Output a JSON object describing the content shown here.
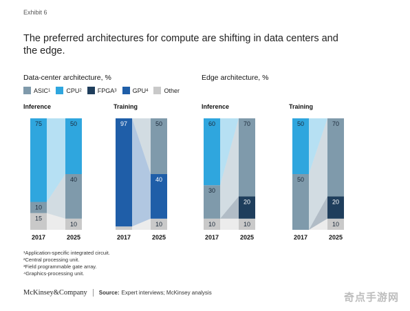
{
  "exhibit": "Exhibit 6",
  "title": "The preferred architectures for compute are shifting in data centers and the edge.",
  "colors": {
    "ASIC": "#7f9aab",
    "CPU": "#2fa6de",
    "FPGA": "#1f3e5c",
    "GPU": "#1f5ea8",
    "Other": "#c9c9c9",
    "label_light": "#1b2a3a",
    "label_dark": "#ffffff"
  },
  "legend": [
    {
      "key": "ASIC",
      "label": "ASIC",
      "sup": "1"
    },
    {
      "key": "CPU",
      "label": "CPU",
      "sup": "2"
    },
    {
      "key": "FPGA",
      "label": "FPGA",
      "sup": "3"
    },
    {
      "key": "GPU",
      "label": "GPU",
      "sup": "4"
    },
    {
      "key": "Other",
      "label": "Other",
      "sup": ""
    }
  ],
  "sections": {
    "datacenter": "Data-center architecture,  %",
    "edge": "Edge architecture,  %"
  },
  "footnotes": [
    "¹Application-specific integrated circuit.",
    "²Central processing unit.",
    "³Field programmable gate array.",
    "⁴Graphics-processing unit."
  ],
  "footer": {
    "logo": "McKinsey&Company",
    "source_label": "Source:",
    "source_text": "Expert interviews; McKinsey analysis"
  },
  "watermark": "奇点手游网",
  "chart_data": [
    {
      "type": "bar",
      "stacked": true,
      "title": "Inference",
      "group": "Data-center architecture,  %",
      "categories": [
        "2017",
        "2025"
      ],
      "series": [
        {
          "name": "Other",
          "values": [
            15,
            10
          ],
          "labels": [
            "15",
            "10"
          ]
        },
        {
          "name": "ASIC",
          "values": [
            10,
            40
          ],
          "labels": [
            "10",
            "40"
          ]
        },
        {
          "name": "CPU",
          "values": [
            75,
            50
          ],
          "labels": [
            "75",
            "50"
          ]
        }
      ]
    },
    {
      "type": "bar",
      "stacked": true,
      "title": "Training",
      "group": "Data-center architecture,  %",
      "categories": [
        "2017",
        "2025"
      ],
      "series": [
        {
          "name": "Other",
          "values": [
            3,
            10
          ],
          "labels": [
            "",
            "10"
          ]
        },
        {
          "name": "GPU",
          "values": [
            97,
            40
          ],
          "labels": [
            "97",
            "40"
          ]
        },
        {
          "name": "ASIC",
          "values": [
            0,
            50
          ],
          "labels": [
            "",
            "50"
          ]
        }
      ]
    },
    {
      "type": "bar",
      "stacked": true,
      "title": "Inference",
      "group": "Edge architecture,  %",
      "categories": [
        "2017",
        "2025"
      ],
      "series": [
        {
          "name": "Other",
          "values": [
            10,
            10
          ],
          "labels": [
            "10",
            "10"
          ]
        },
        {
          "name": "FPGA",
          "values": [
            0,
            20
          ],
          "labels": [
            "",
            "20"
          ]
        },
        {
          "name": "ASIC",
          "values": [
            30,
            70
          ],
          "labels": [
            "30",
            "70"
          ]
        },
        {
          "name": "CPU",
          "values": [
            60,
            0
          ],
          "labels": [
            "60",
            ""
          ]
        }
      ]
    },
    {
      "type": "bar",
      "stacked": true,
      "title": "Training",
      "group": "Edge architecture,  %",
      "categories": [
        "2017",
        "2025"
      ],
      "series": [
        {
          "name": "Other",
          "values": [
            0,
            10
          ],
          "labels": [
            "",
            "10"
          ]
        },
        {
          "name": "FPGA",
          "values": [
            0,
            20
          ],
          "labels": [
            "",
            "20"
          ]
        },
        {
          "name": "ASIC",
          "values": [
            50,
            70
          ],
          "labels": [
            "50",
            "70"
          ]
        },
        {
          "name": "CPU",
          "values": [
            50,
            0
          ],
          "labels": [
            "50",
            ""
          ]
        }
      ]
    }
  ]
}
